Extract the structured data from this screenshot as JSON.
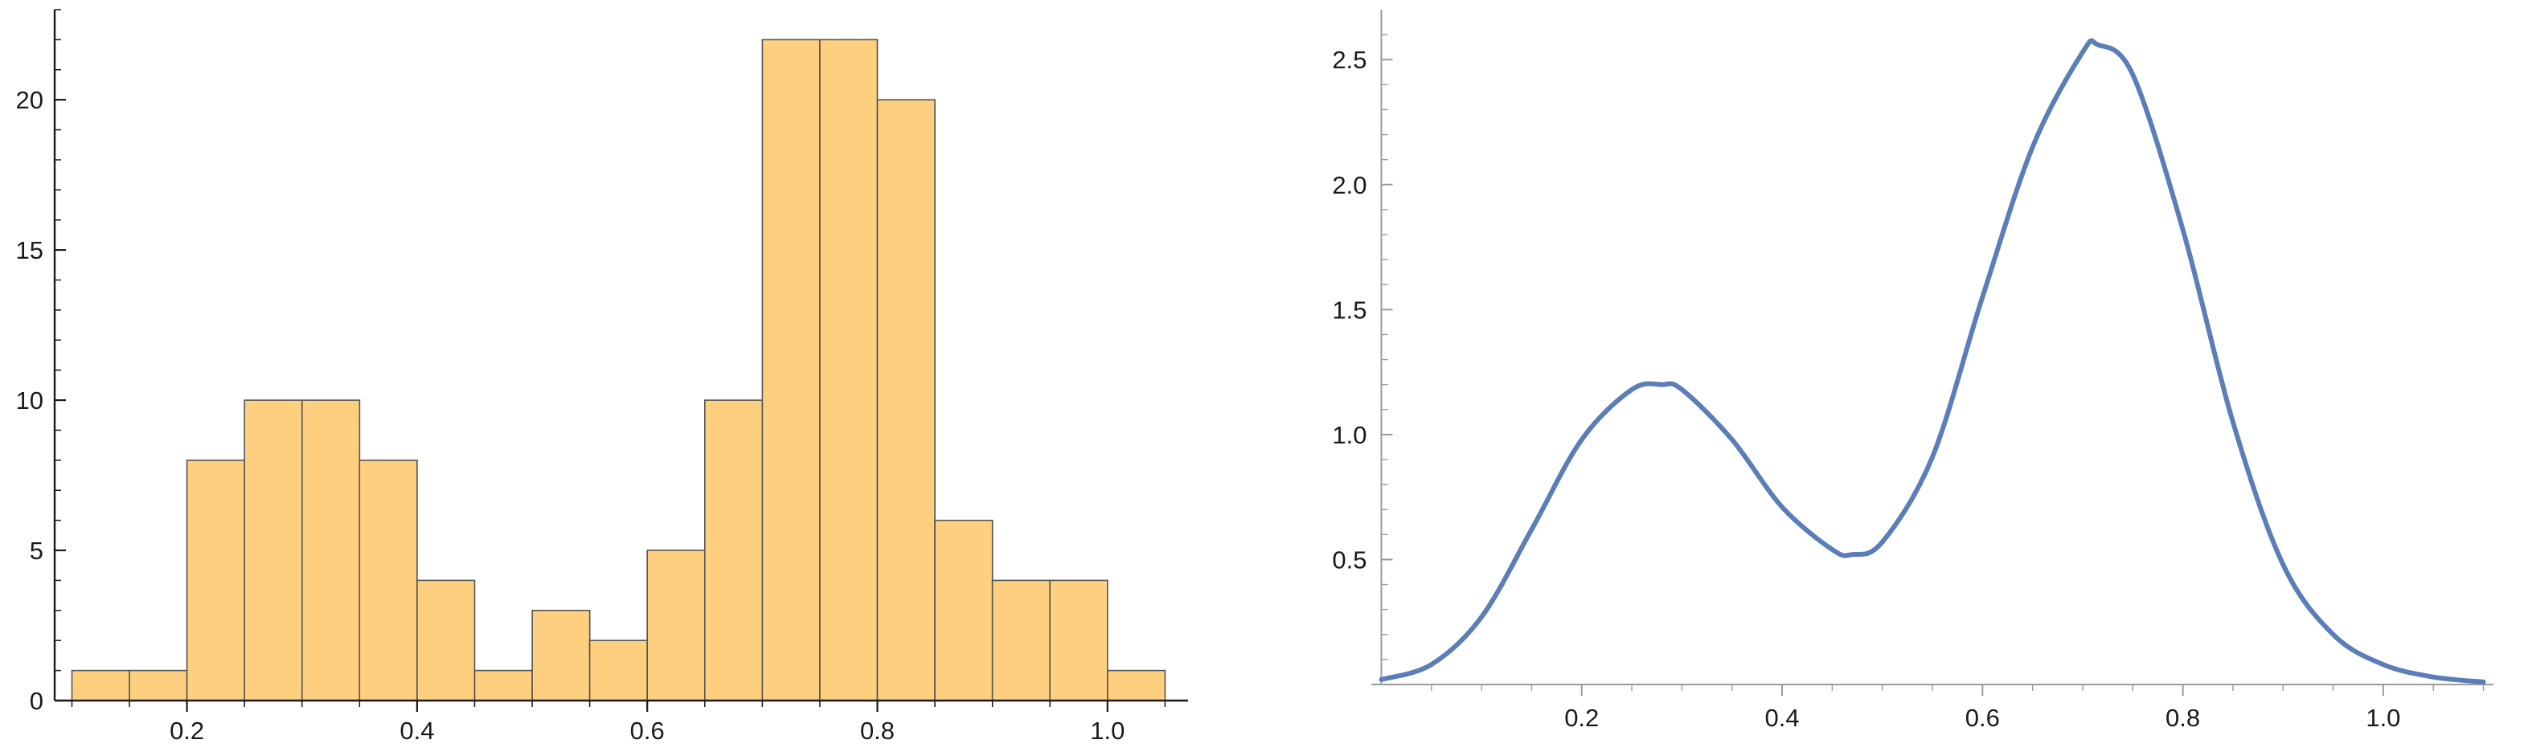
{
  "chart_data": [
    {
      "type": "bar",
      "title": "",
      "xlabel": "",
      "ylabel": "",
      "bin_width": 0.05,
      "bins": [
        {
          "start": 0.1,
          "end": 0.15,
          "count": 1
        },
        {
          "start": 0.15,
          "end": 0.2,
          "count": 1
        },
        {
          "start": 0.2,
          "end": 0.25,
          "count": 8
        },
        {
          "start": 0.25,
          "end": 0.3,
          "count": 10
        },
        {
          "start": 0.3,
          "end": 0.35,
          "count": 10
        },
        {
          "start": 0.35,
          "end": 0.4,
          "count": 8
        },
        {
          "start": 0.4,
          "end": 0.45,
          "count": 4
        },
        {
          "start": 0.45,
          "end": 0.5,
          "count": 1
        },
        {
          "start": 0.5,
          "end": 0.55,
          "count": 3
        },
        {
          "start": 0.55,
          "end": 0.6,
          "count": 2
        },
        {
          "start": 0.6,
          "end": 0.65,
          "count": 5
        },
        {
          "start": 0.65,
          "end": 0.7,
          "count": 10
        },
        {
          "start": 0.7,
          "end": 0.75,
          "count": 22
        },
        {
          "start": 0.75,
          "end": 0.8,
          "count": 22
        },
        {
          "start": 0.8,
          "end": 0.85,
          "count": 20
        },
        {
          "start": 0.85,
          "end": 0.9,
          "count": 6
        },
        {
          "start": 0.9,
          "end": 0.95,
          "count": 4
        },
        {
          "start": 0.95,
          "end": 1.0,
          "count": 4
        },
        {
          "start": 1.0,
          "end": 1.05,
          "count": 1
        }
      ],
      "xlim": [
        0.085,
        1.07
      ],
      "ylim": [
        0,
        23
      ],
      "x_ticks": [
        "0.2",
        "0.4",
        "0.6",
        "0.8",
        "1.0"
      ],
      "y_ticks": [
        "0",
        "5",
        "10",
        "15",
        "20"
      ],
      "grid": false,
      "bar_color": "#fdcf7e",
      "edge_color": "#555555"
    },
    {
      "type": "line",
      "title": "",
      "xlabel": "",
      "ylabel": "",
      "series": [
        {
          "x": [
            0.0,
            0.05,
            0.1,
            0.15,
            0.2,
            0.25,
            0.28,
            0.3,
            0.35,
            0.4,
            0.45,
            0.47,
            0.5,
            0.55,
            0.6,
            0.65,
            0.7,
            0.715,
            0.75,
            0.8,
            0.85,
            0.9,
            0.95,
            1.0,
            1.05,
            1.1
          ],
          "y": [
            0.02,
            0.08,
            0.27,
            0.62,
            0.98,
            1.18,
            1.2,
            1.18,
            0.98,
            0.71,
            0.54,
            0.52,
            0.57,
            0.91,
            1.55,
            2.15,
            2.53,
            2.56,
            2.44,
            1.82,
            1.05,
            0.48,
            0.2,
            0.08,
            0.03,
            0.01
          ]
        }
      ],
      "xlim": [
        -0.01,
        1.11
      ],
      "ylim": [
        0,
        2.7
      ],
      "x_ticks": [
        "0.2",
        "0.4",
        "0.6",
        "0.8",
        "1.0"
      ],
      "y_ticks": [
        "0.5",
        "1.0",
        "1.5",
        "2.0",
        "2.5"
      ],
      "grid": false,
      "line_color": "#5b7db8"
    }
  ]
}
